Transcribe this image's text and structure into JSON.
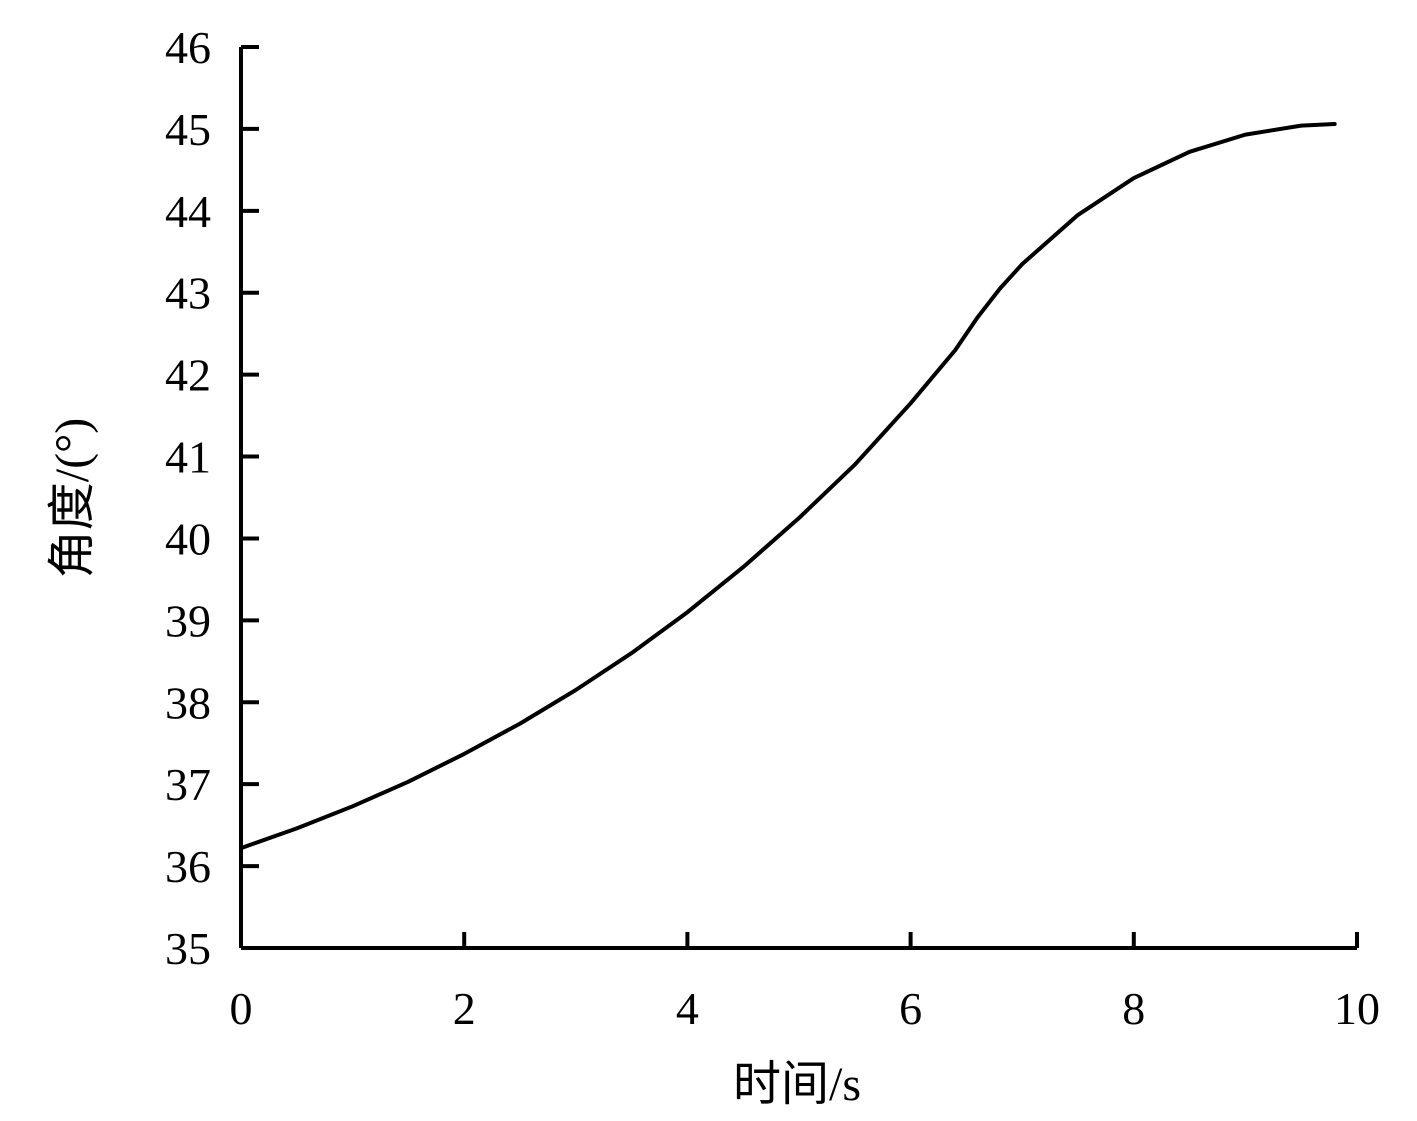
{
  "chart_data": {
    "type": "line",
    "title": "",
    "xlabel": "时间/s",
    "ylabel": "角度/(°)",
    "xlim": [
      0,
      10
    ],
    "ylim": [
      35,
      46
    ],
    "xticks": [
      0,
      2,
      4,
      6,
      8,
      10
    ],
    "yticks": [
      35,
      36,
      37,
      38,
      39,
      40,
      41,
      42,
      43,
      44,
      45,
      46
    ],
    "grid": false,
    "legend": "none",
    "series": [
      {
        "color": "#000000",
        "x": [
          0,
          0.5,
          1,
          1.5,
          2,
          2.5,
          3,
          3.5,
          4,
          4.5,
          5,
          5.5,
          6,
          6.4,
          6.6,
          6.8,
          7,
          7.5,
          8,
          8.5,
          9,
          9.5,
          9.8
        ],
        "y": [
          36.22,
          36.46,
          36.73,
          37.03,
          37.37,
          37.74,
          38.15,
          38.6,
          39.1,
          39.65,
          40.25,
          40.9,
          41.65,
          42.3,
          42.7,
          43.05,
          43.35,
          43.95,
          44.4,
          44.72,
          44.93,
          45.04,
          45.06
        ]
      }
    ]
  }
}
